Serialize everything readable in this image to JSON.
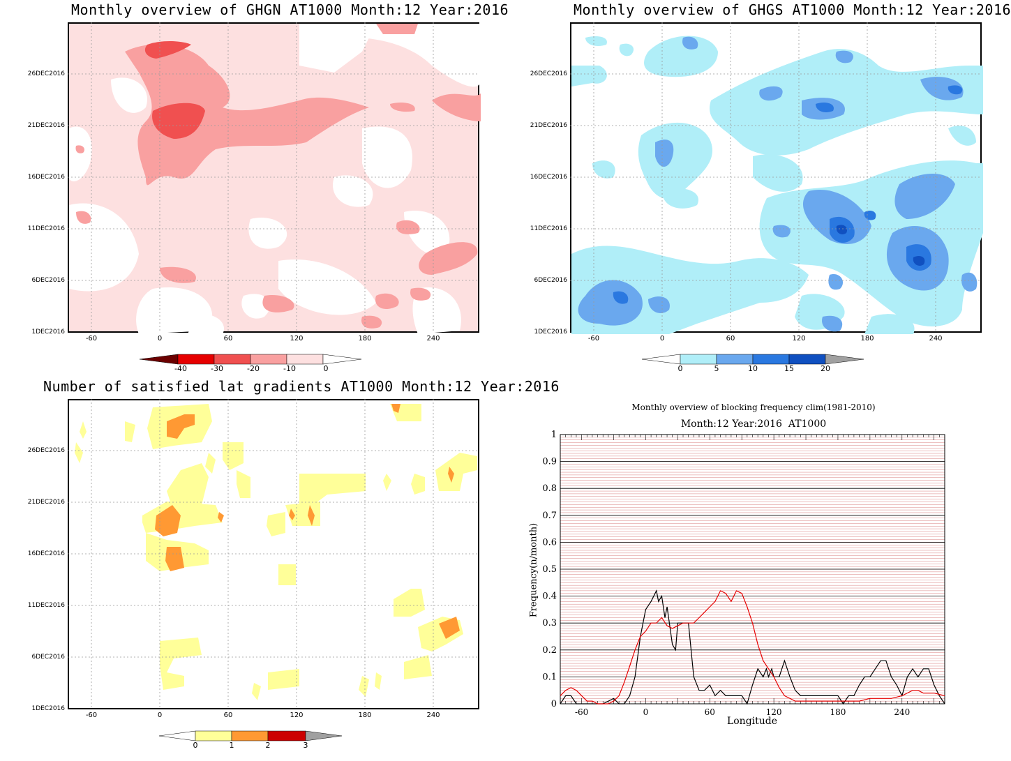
{
  "panels": [
    {
      "id": "ghgn",
      "title": "Monthly overview of GHGN AT1000 Month:12 Year:2016",
      "y_ticks": [
        "26DEC2016",
        "21DEC2016",
        "16DEC2016",
        "11DEC2016",
        "6DEC2016",
        "1DEC2016"
      ],
      "x_ticks": [
        "-60",
        "0",
        "60",
        "120",
        "180",
        "240"
      ],
      "colorbar_labels": [
        "-40",
        "-30",
        "-20",
        "-10",
        "0"
      ],
      "colors": [
        "#6b0000",
        "#e60000",
        "#f05050",
        "#f9a0a0",
        "#fde0e0"
      ]
    },
    {
      "id": "ghgs",
      "title": "Monthly overview of GHGS AT1000 Month:12 Year:2016",
      "y_ticks": [
        "26DEC2016",
        "21DEC2016",
        "16DEC2016",
        "11DEC2016",
        "6DEC2016",
        "1DEC2016"
      ],
      "x_ticks": [
        "-60",
        "0",
        "60",
        "120",
        "180",
        "240"
      ],
      "colorbar_labels": [
        "0",
        "5",
        "10",
        "15",
        "20"
      ],
      "colors": [
        "#b0eef8",
        "#6aa8ee",
        "#2a78e0",
        "#1050c0",
        "#a0a0a0"
      ]
    },
    {
      "id": "gradients",
      "title": "Number of satisfied lat gradients AT1000 Month:12 Year:2016",
      "y_ticks": [
        "26DEC2016",
        "21DEC2016",
        "16DEC2016",
        "11DEC2016",
        "6DEC2016",
        "1DEC2016"
      ],
      "x_ticks": [
        "-60",
        "0",
        "60",
        "120",
        "180",
        "240"
      ],
      "colorbar_labels": [
        "0",
        "1",
        "2",
        "3"
      ],
      "colors": [
        "#ffff99",
        "#ff9933",
        "#cc0000",
        "#a0a0a0"
      ]
    }
  ],
  "chart_data": {
    "type": "line",
    "title": "Monthly overview of blocking frequency clim(1981-2010)",
    "subtitle": "Month:12 Year:2016  AT1000",
    "xlabel": "Longitude",
    "ylabel": "Frequency(n/month)",
    "xlim": [
      -80,
      280
    ],
    "ylim": [
      0,
      1
    ],
    "x_ticks": [
      "-60",
      "0",
      "60",
      "120",
      "180",
      "240"
    ],
    "y_ticks": [
      "0",
      "0.1",
      "0.2",
      "0.3",
      "0.4",
      "0.5",
      "0.6",
      "0.7",
      "0.8",
      "0.9",
      "1"
    ],
    "grid": true,
    "series": [
      {
        "color": "#000000",
        "x": [
          -80,
          -75,
          -70,
          -65,
          -60,
          -50,
          -40,
          -30,
          -25,
          -20,
          -15,
          -10,
          -5,
          0,
          5,
          10,
          12,
          15,
          18,
          20,
          25,
          28,
          30,
          35,
          40,
          45,
          50,
          55,
          60,
          65,
          70,
          75,
          80,
          85,
          90,
          95,
          100,
          105,
          110,
          113,
          115,
          118,
          120,
          125,
          130,
          135,
          140,
          145,
          150,
          160,
          170,
          180,
          185,
          190,
          195,
          200,
          205,
          210,
          215,
          220,
          225,
          230,
          235,
          240,
          245,
          250,
          255,
          260,
          265,
          270,
          275,
          280
        ],
        "y": [
          0,
          0.03,
          0.03,
          0,
          0,
          0,
          0,
          0.02,
          0,
          0,
          0.03,
          0.1,
          0.25,
          0.35,
          0.38,
          0.42,
          0.38,
          0.4,
          0.32,
          0.36,
          0.22,
          0.2,
          0.3,
          0.3,
          0.3,
          0.1,
          0.05,
          0.05,
          0.07,
          0.03,
          0.05,
          0.03,
          0.03,
          0.03,
          0.03,
          0,
          0.07,
          0.13,
          0.1,
          0.13,
          0.1,
          0.13,
          0.1,
          0.1,
          0.16,
          0.1,
          0.05,
          0.03,
          0.03,
          0.03,
          0.03,
          0.03,
          0,
          0.03,
          0.03,
          0.07,
          0.1,
          0.1,
          0.13,
          0.16,
          0.16,
          0.1,
          0.07,
          0.03,
          0.1,
          0.13,
          0.1,
          0.13,
          0.13,
          0.07,
          0.03,
          0
        ]
      },
      {
        "color": "#e60000",
        "x": [
          -80,
          -75,
          -70,
          -65,
          -60,
          -55,
          -50,
          -45,
          -40,
          -35,
          -30,
          -25,
          -20,
          -15,
          -10,
          -5,
          0,
          5,
          10,
          15,
          20,
          25,
          30,
          35,
          40,
          45,
          50,
          55,
          60,
          65,
          70,
          75,
          80,
          85,
          90,
          95,
          100,
          105,
          110,
          115,
          120,
          125,
          130,
          140,
          150,
          160,
          170,
          180,
          190,
          200,
          210,
          220,
          230,
          240,
          245,
          250,
          255,
          260,
          270,
          280
        ],
        "y": [
          0.03,
          0.05,
          0.06,
          0.05,
          0.03,
          0.01,
          0.01,
          0,
          0,
          0,
          0.01,
          0.03,
          0.08,
          0.14,
          0.2,
          0.25,
          0.27,
          0.3,
          0.3,
          0.32,
          0.29,
          0.28,
          0.29,
          0.3,
          0.3,
          0.3,
          0.32,
          0.34,
          0.36,
          0.38,
          0.42,
          0.41,
          0.38,
          0.42,
          0.41,
          0.36,
          0.3,
          0.22,
          0.16,
          0.13,
          0.1,
          0.06,
          0.03,
          0.01,
          0.01,
          0.01,
          0.01,
          0.01,
          0.01,
          0.01,
          0.02,
          0.02,
          0.02,
          0.03,
          0.04,
          0.05,
          0.05,
          0.04,
          0.04,
          0.03
        ]
      }
    ]
  }
}
